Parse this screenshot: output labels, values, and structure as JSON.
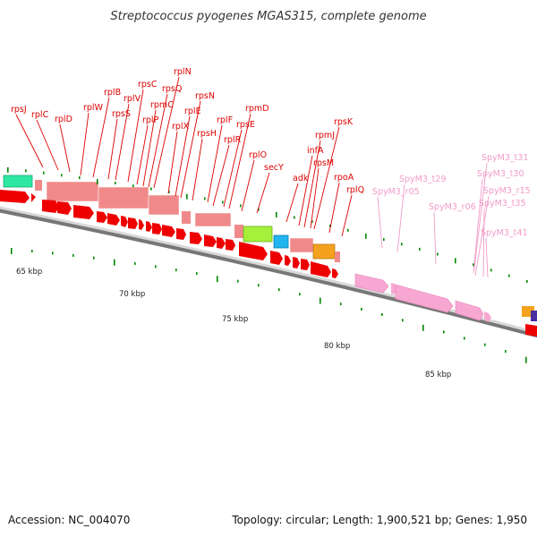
{
  "title": "Streptococcus pyogenes MGAS315, complete genome",
  "accession": "Accession: NC_004070",
  "topology": "Topology: circular; Length: 1,900,521 bp; Genes: 1,950",
  "colors": {
    "cds": "#ee0000",
    "rrna_pink": "#f7a8d2",
    "trna_label": "#f29bc9",
    "ribosomal_block": "#f08a8a",
    "green_feature": "#2ee8a2",
    "lime_feature": "#a5f03a",
    "cyan_feature": "#22b4ee",
    "orange_feature": "#f4a21e",
    "tick_green": "#008800",
    "label_red": "#dd0000"
  },
  "scale_labels": [
    {
      "text": "65 kbp"
    },
    {
      "text": "70 kbp"
    },
    {
      "text": "75 kbp"
    },
    {
      "text": "80 kbp"
    },
    {
      "text": "85 kbp"
    }
  ],
  "gene_labels": [
    {
      "text": "rpsJ",
      "color": "red"
    },
    {
      "text": "rplC",
      "color": "red"
    },
    {
      "text": "rplD",
      "color": "red"
    },
    {
      "text": "rplW",
      "color": "red"
    },
    {
      "text": "rplB",
      "color": "red"
    },
    {
      "text": "rpsS",
      "color": "red"
    },
    {
      "text": "rplV",
      "color": "red"
    },
    {
      "text": "rpsC",
      "color": "red"
    },
    {
      "text": "rplP",
      "color": "red"
    },
    {
      "text": "rpmC",
      "color": "red"
    },
    {
      "text": "rpsQ",
      "color": "red"
    },
    {
      "text": "rplN",
      "color": "red"
    },
    {
      "text": "rplX",
      "color": "red"
    },
    {
      "text": "rplE",
      "color": "red"
    },
    {
      "text": "rpsN",
      "color": "red"
    },
    {
      "text": "rpsH",
      "color": "red"
    },
    {
      "text": "rplF",
      "color": "red"
    },
    {
      "text": "rplR",
      "color": "red"
    },
    {
      "text": "rpsE",
      "color": "red"
    },
    {
      "text": "rpmD",
      "color": "red"
    },
    {
      "text": "rplO",
      "color": "red"
    },
    {
      "text": "secY",
      "color": "red"
    },
    {
      "text": "adk",
      "color": "red"
    },
    {
      "text": "infA",
      "color": "red"
    },
    {
      "text": "rpmJ",
      "color": "red"
    },
    {
      "text": "rpsM",
      "color": "red"
    },
    {
      "text": "rpsK",
      "color": "red"
    },
    {
      "text": "rpoA",
      "color": "red"
    },
    {
      "text": "rplQ",
      "color": "red"
    },
    {
      "text": "SpyM3_r05",
      "color": "pink"
    },
    {
      "text": "SpyM3_t29",
      "color": "pink"
    },
    {
      "text": "SpyM3_r06",
      "color": "pink"
    },
    {
      "text": "SpyM3_t31",
      "color": "pink"
    },
    {
      "text": "SpyM3_t30",
      "color": "pink"
    },
    {
      "text": "SpyM3_r15",
      "color": "pink"
    },
    {
      "text": "SpyM3_t35",
      "color": "pink"
    },
    {
      "text": "SpyM3_t41",
      "color": "pink"
    }
  ]
}
